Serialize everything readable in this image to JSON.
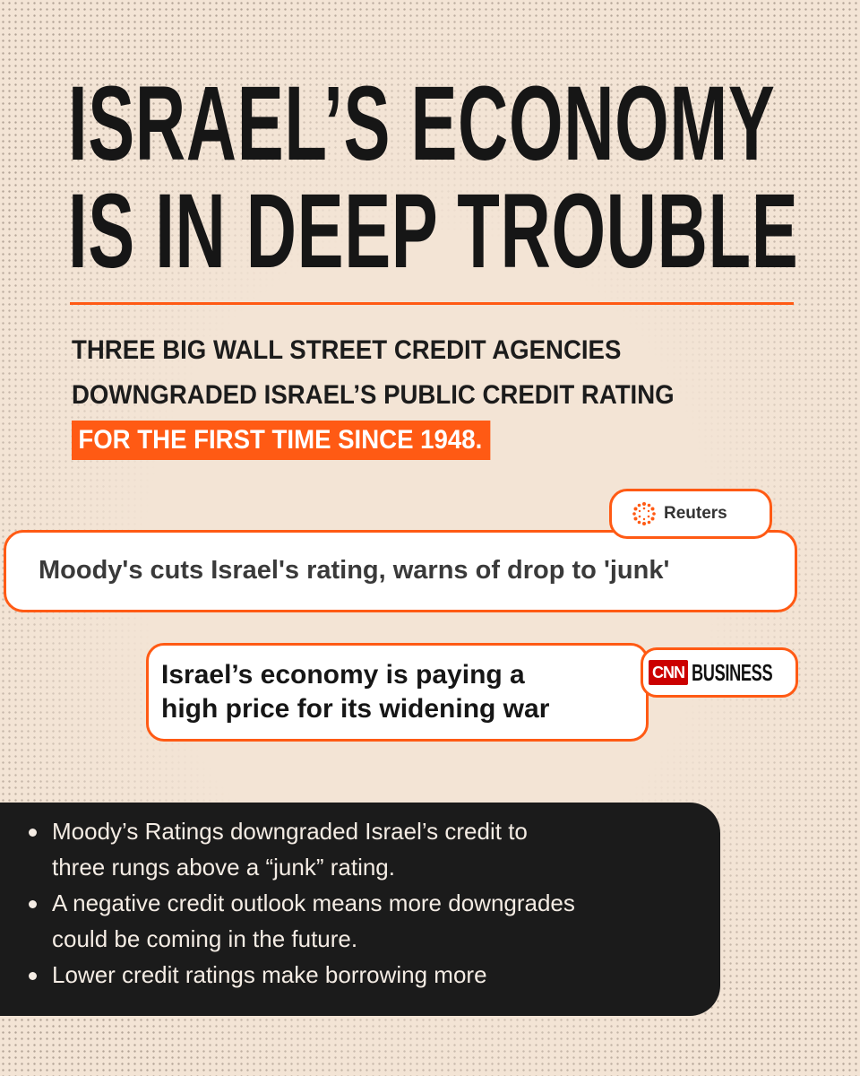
{
  "title": {
    "lines": [
      "ISRAEL’S ECONOMY",
      "IS IN DEEP TROUBLE"
    ]
  },
  "subtitle": {
    "line1": "THREE BIG WALL STREET CREDIT AGENCIES",
    "line2": "DOWNGRADED ISRAEL’S PUBLIC CREDIT RATING",
    "highlight": "FOR THE FIRST TIME SINCE 1948."
  },
  "reuters": {
    "source_name": "Reuters",
    "logo_icon": "reuters-dot-ring-icon",
    "headline": "Moody's cuts Israel's rating, warns of drop to 'junk'"
  },
  "cnn": {
    "logo_text": "CNN",
    "section_text": "BUSINESS",
    "headline_lines": [
      "Israel’s economy is paying a",
      "high price for its widening war"
    ]
  },
  "bullets": [
    {
      "lines": [
        "Moody’s Ratings downgraded Israel’s credit to",
        "three rungs above a “junk” rating."
      ]
    },
    {
      "lines": [
        "A negative credit outlook means more downgrades",
        "could be coming in the future."
      ]
    },
    {
      "lines": [
        "Lower credit ratings make borrowing more"
      ]
    }
  ],
  "colors": {
    "background": "#f3e4d5",
    "accent": "#ff5a14",
    "dark_panel": "#1b1b1b",
    "cnn_red": "#cc0000"
  }
}
